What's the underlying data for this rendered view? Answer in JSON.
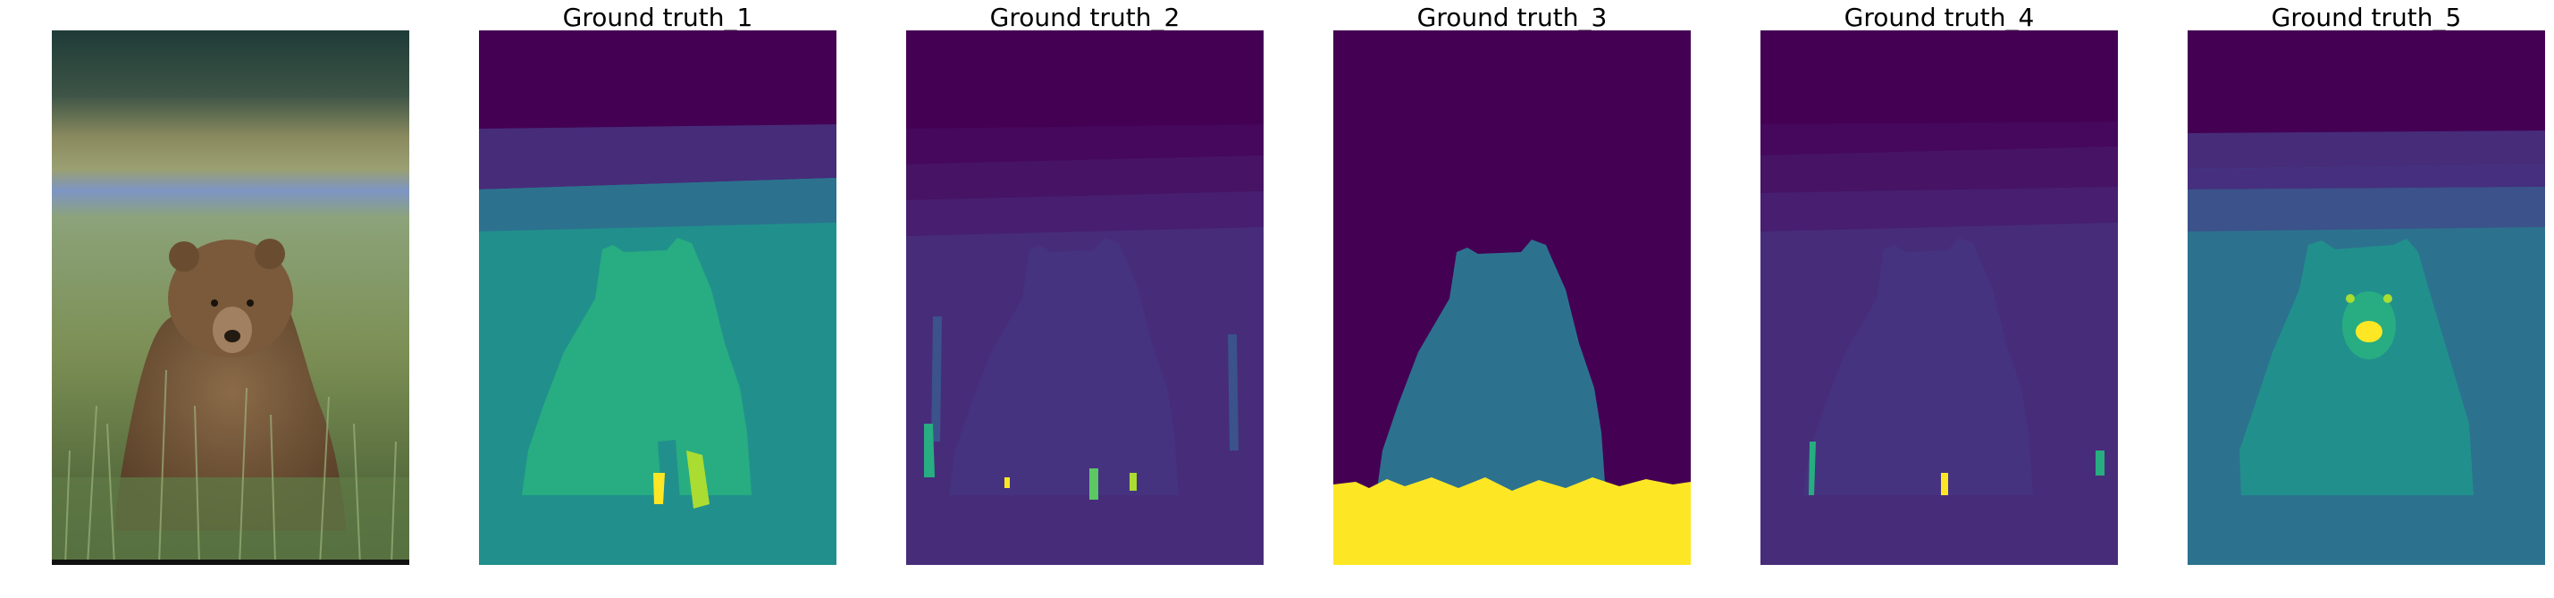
{
  "figure": {
    "panels": [
      {
        "kind": "photo",
        "title": ""
      },
      {
        "kind": "segmentation",
        "title": "Ground truth_1"
      },
      {
        "kind": "segmentation",
        "title": "Ground truth_2"
      },
      {
        "kind": "segmentation",
        "title": "Ground truth_3"
      },
      {
        "kind": "segmentation",
        "title": "Ground truth_4"
      },
      {
        "kind": "segmentation",
        "title": "Ground truth_5"
      }
    ],
    "colormap": [
      "#440154",
      "#472c7a",
      "#3b528b",
      "#2c728e",
      "#21908d",
      "#27ad81",
      "#5cc863",
      "#aadc32",
      "#fde725"
    ]
  }
}
